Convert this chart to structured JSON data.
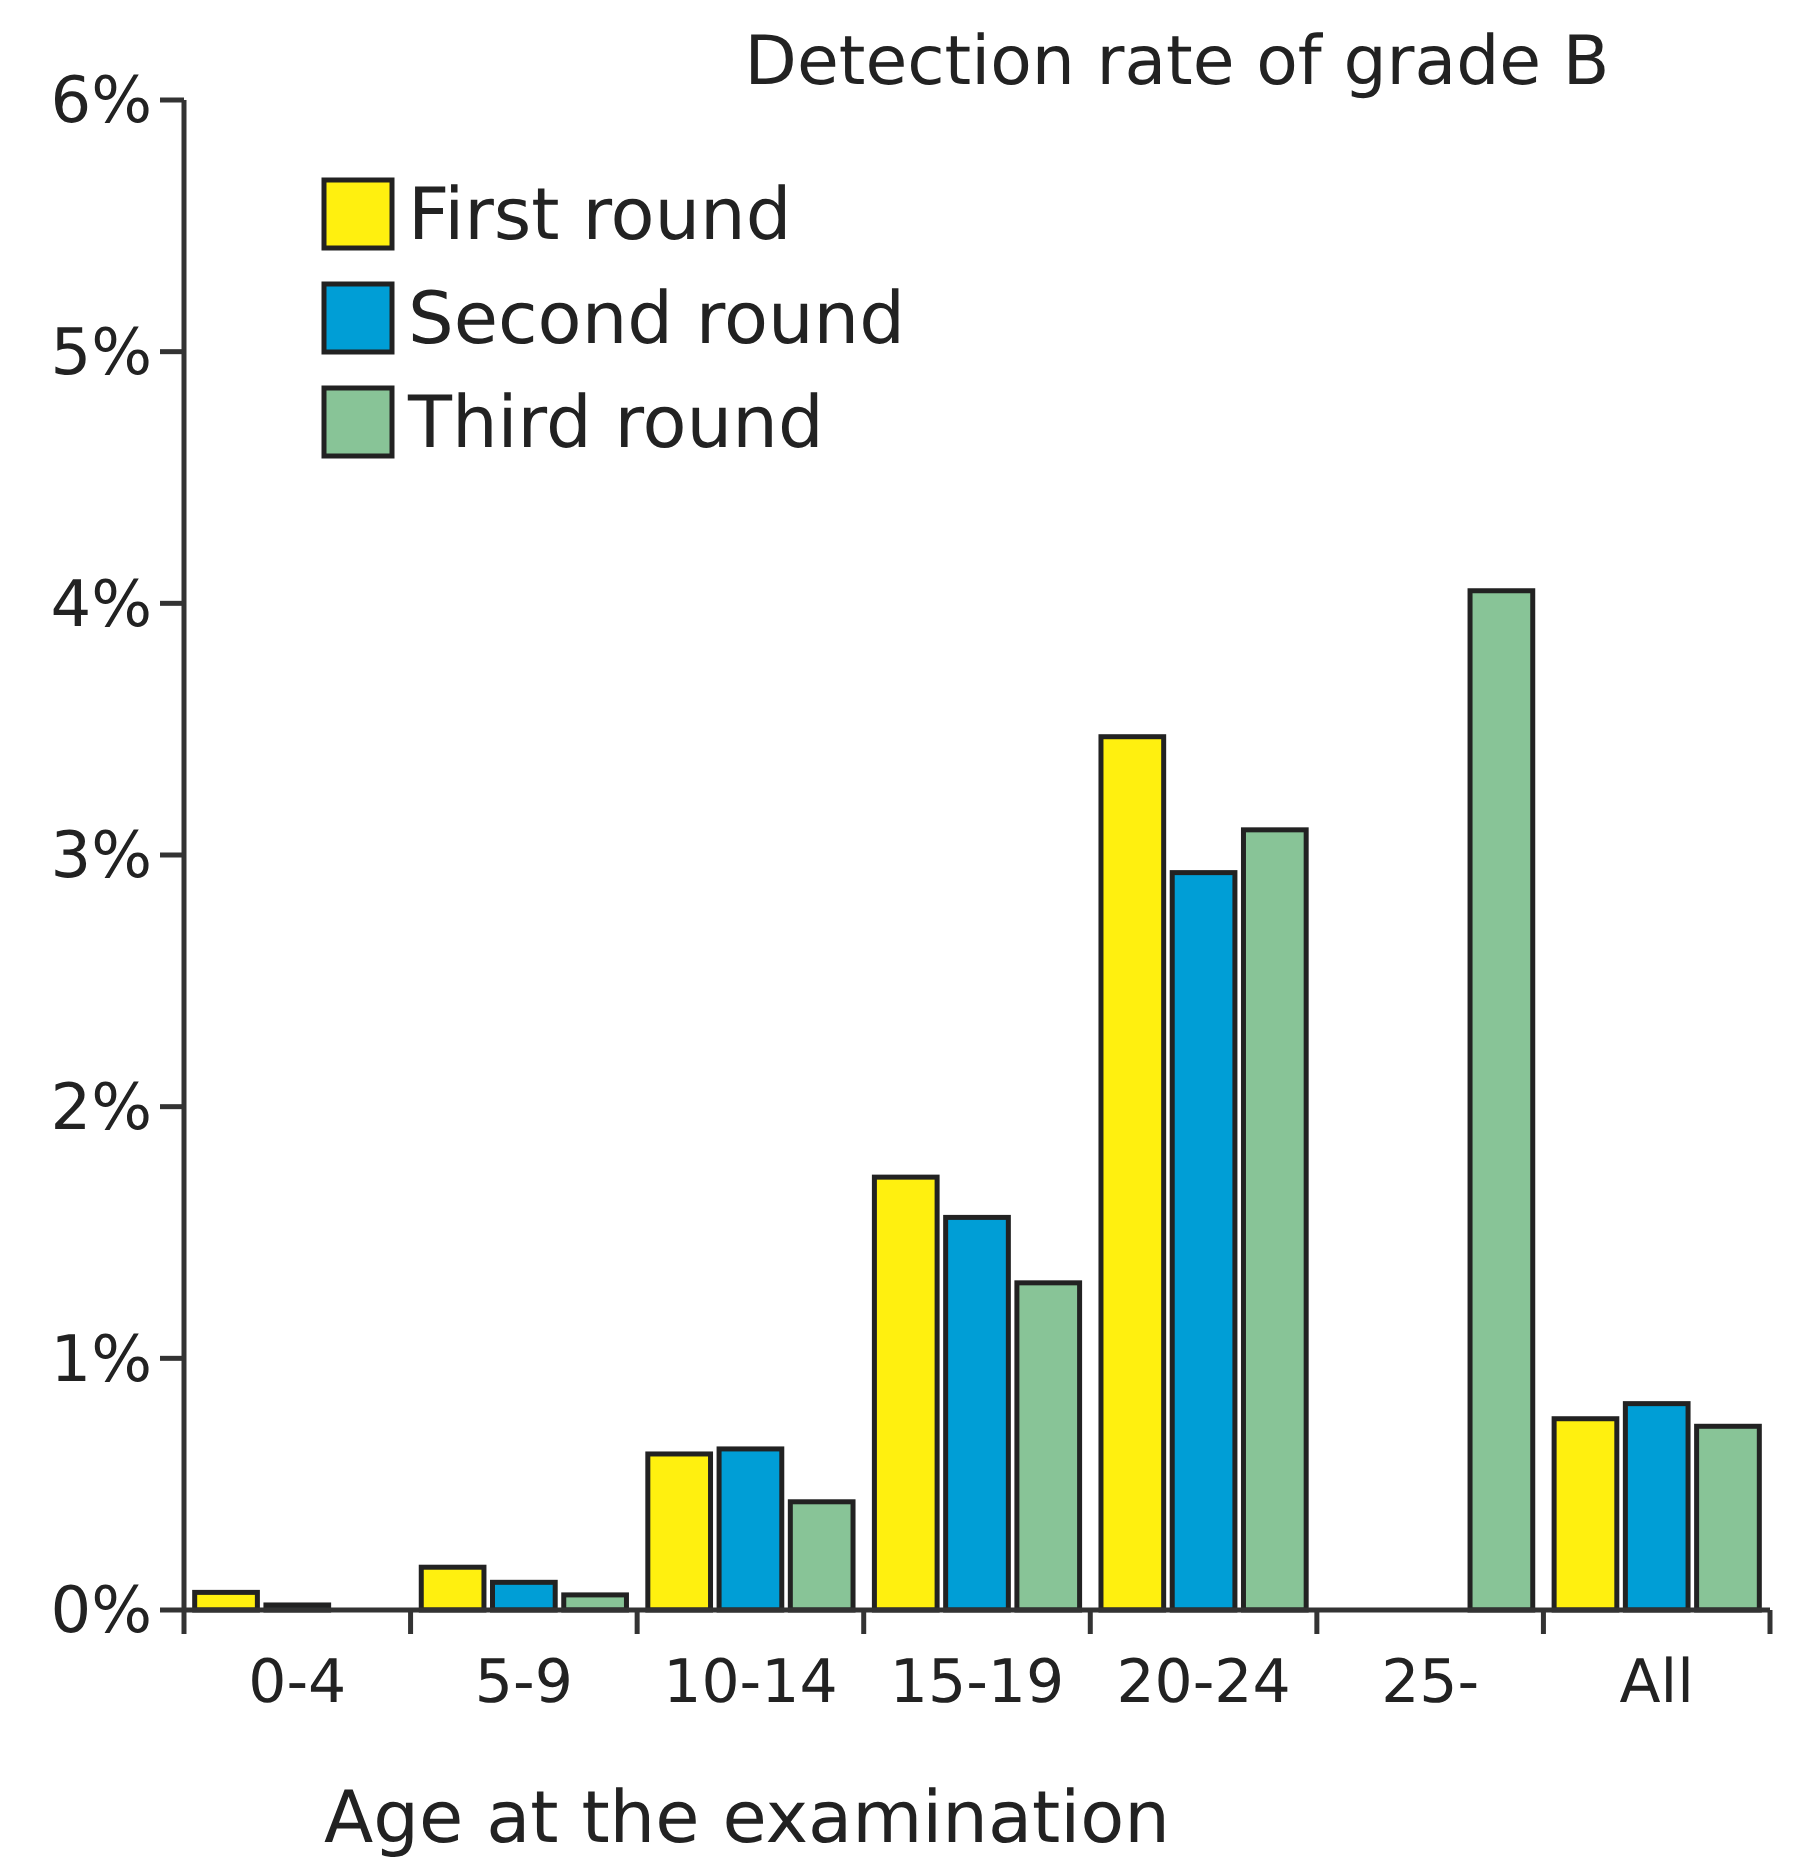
{
  "chart_data": {
    "type": "bar",
    "title": "Detection rate of grade B",
    "xlabel": "Age at the examination",
    "categories": [
      "0-4",
      "5-9",
      "10-14",
      "15-19",
      "20-24",
      "25-",
      "All"
    ],
    "series": [
      {
        "name": "First round",
        "color": "#fff00f",
        "values": [
          0.07,
          0.17,
          0.62,
          1.72,
          3.47,
          null,
          0.76
        ]
      },
      {
        "name": "Second round",
        "color": "#009ed6",
        "values": [
          0.02,
          0.11,
          0.64,
          1.56,
          2.93,
          null,
          0.82
        ]
      },
      {
        "name": "Third round",
        "color": "#88c497",
        "values": [
          null,
          0.06,
          0.43,
          1.3,
          3.1,
          4.05,
          0.73
        ]
      }
    ],
    "ylim": [
      0,
      6
    ],
    "yticks": [
      {
        "value": 0,
        "label": "0%"
      },
      {
        "value": 1,
        "label": "1%"
      },
      {
        "value": 2,
        "label": "2%"
      },
      {
        "value": 3,
        "label": "3%"
      },
      {
        "value": 4,
        "label": "4%"
      },
      {
        "value": 5,
        "label": "5%"
      },
      {
        "value": 6,
        "label": "6%"
      }
    ],
    "legend": "top left",
    "grid": false
  }
}
